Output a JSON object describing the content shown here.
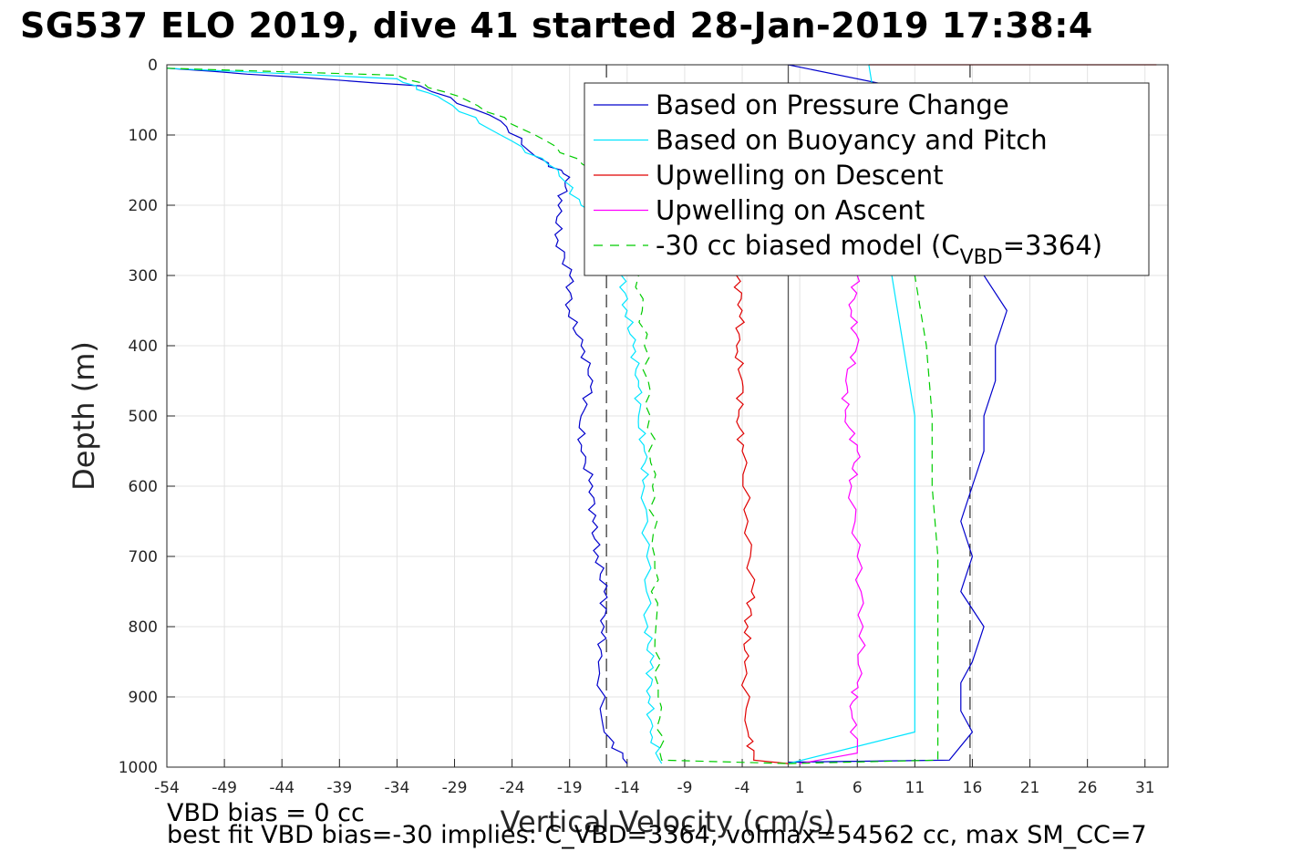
{
  "title": "SG537 ELO 2019, dive 41 started 28-Jan-2019 17:38:4",
  "chart_data": {
    "type": "line",
    "xlabel": "Vertical Velocity (cm/s)",
    "ylabel": "Depth (m)",
    "xlim": [
      -54,
      33
    ],
    "ylim": [
      0,
      1000
    ],
    "y_reversed": true,
    "grid": true,
    "xticks": [
      -54,
      -49,
      -44,
      -39,
      -34,
      -29,
      -24,
      -19,
      -14,
      -9,
      -4,
      1,
      6,
      11,
      16,
      21,
      26,
      31
    ],
    "yticks": [
      0,
      100,
      200,
      300,
      400,
      500,
      600,
      700,
      800,
      900,
      1000
    ],
    "legend_position": "top-right",
    "legend": [
      {
        "label": "Based on Pressure Change",
        "color": "#0000cc",
        "dash": false
      },
      {
        "label": "Based on Buoyancy and Pitch",
        "color": "#00e5ff",
        "dash": false
      },
      {
        "label": "Upwelling on Descent",
        "color": "#e00000",
        "dash": false
      },
      {
        "label": "Upwelling on Ascent",
        "color": "#ff00ff",
        "dash": false
      },
      {
        "label": "-30 cc biased model (C",
        "sub": "VBD",
        "suffix": "=3364)",
        "color": "#00cc00",
        "dash": true
      }
    ],
    "series": [
      {
        "name": "Based on Pressure Change",
        "color": "#0000cc",
        "dash": false,
        "x": [
          -54,
          -32,
          -25,
          -22,
          -19,
          -20,
          -20,
          -19,
          -19,
          -18,
          -17,
          -18,
          -18,
          -17,
          -17,
          -16.5,
          -16,
          -16,
          -16.5,
          -16,
          -14
        ],
        "y": [
          5,
          30,
          80,
          130,
          160,
          200,
          250,
          300,
          350,
          400,
          450,
          500,
          550,
          600,
          650,
          700,
          750,
          800,
          850,
          950,
          995
        ]
      },
      {
        "name": "Based on Pressure Change",
        "color": "#0000cc",
        "dash": false,
        "x": [
          0,
          14,
          16,
          15,
          15,
          16,
          17,
          15,
          16,
          15,
          16,
          17,
          17,
          18,
          18,
          19,
          17,
          17,
          15,
          0
        ],
        "y": [
          993,
          990,
          950,
          920,
          880,
          850,
          800,
          750,
          700,
          650,
          600,
          550,
          500,
          450,
          400,
          350,
          300,
          200,
          50,
          0
        ]
      },
      {
        "name": "Based on Buoyancy and Pitch",
        "color": "#00e5ff",
        "dash": false,
        "x": [
          -54,
          -34,
          -30,
          -25,
          -20,
          -18,
          -15,
          -14.5,
          -14,
          -13.5,
          -13,
          -13,
          -12.5,
          -12.5,
          -12.3,
          -12.2,
          -12,
          -12,
          -12,
          -11
        ],
        "y": [
          5,
          20,
          50,
          100,
          150,
          200,
          250,
          300,
          350,
          400,
          450,
          500,
          550,
          600,
          700,
          800,
          850,
          900,
          950,
          995
        ]
      },
      {
        "name": "Based on Buoyancy and Pitch",
        "color": "#00e5ff",
        "dash": false,
        "x": [
          0,
          11,
          11,
          11,
          11,
          11,
          11,
          10,
          9,
          8,
          7
        ],
        "y": [
          995,
          950,
          900,
          800,
          700,
          600,
          500,
          400,
          300,
          100,
          0
        ]
      },
      {
        "name": "Upwelling on Descent",
        "color": "#e00000",
        "dash": false,
        "x": [
          -4.5,
          -4,
          -4.5,
          -4,
          -4.3,
          -4,
          -3.5,
          -3.2,
          -3.5,
          -3.8,
          -3.5,
          -3,
          0
        ],
        "y": [
          300,
          350,
          400,
          450,
          500,
          550,
          650,
          750,
          800,
          850,
          950,
          990,
          995
        ]
      },
      {
        "name": "Upwelling on Descent",
        "color": "#e00000",
        "dash": false,
        "x": [
          7,
          15,
          32
        ],
        "y": [
          0,
          0,
          0
        ]
      },
      {
        "name": "Upwelling on Ascent",
        "color": "#ff00ff",
        "dash": false,
        "x": [
          6,
          5.5,
          6,
          5,
          5,
          6,
          5.5,
          6,
          6.5,
          6,
          5.5,
          6,
          1
        ],
        "y": [
          300,
          350,
          400,
          450,
          500,
          550,
          600,
          700,
          800,
          880,
          920,
          980,
          995
        ]
      },
      {
        "name": "-30 cc biased model",
        "color": "#00cc00",
        "dash": true,
        "x": [
          -54,
          -34,
          -28,
          -22,
          -17,
          -14,
          -13,
          -12.5,
          -12,
          -11.8,
          -11.6,
          -11.5,
          -11.3,
          -11,
          0
        ],
        "y": [
          5,
          15,
          50,
          100,
          150,
          200,
          300,
          400,
          500,
          600,
          700,
          800,
          900,
          990,
          995
        ]
      },
      {
        "name": "-30 cc biased model",
        "color": "#00cc00",
        "dash": true,
        "x": [
          0,
          13,
          13,
          13,
          13,
          12.5,
          12.5,
          12,
          11
        ],
        "y": [
          995,
          990,
          900,
          800,
          700,
          600,
          500,
          400,
          300
        ]
      }
    ],
    "dashed_lines": [
      {
        "x": -15.8,
        "color": "#000000"
      },
      {
        "x": 15.8,
        "color": "#000000"
      }
    ],
    "solid_lines": [
      {
        "x": 0,
        "color": "#000000"
      }
    ]
  },
  "notes": {
    "line1": "VBD bias = 0 cc",
    "line2": "best fit VBD bias=-30 implies: C_VBD=3364, volmax=54562 cc, max SM_CC=7"
  }
}
